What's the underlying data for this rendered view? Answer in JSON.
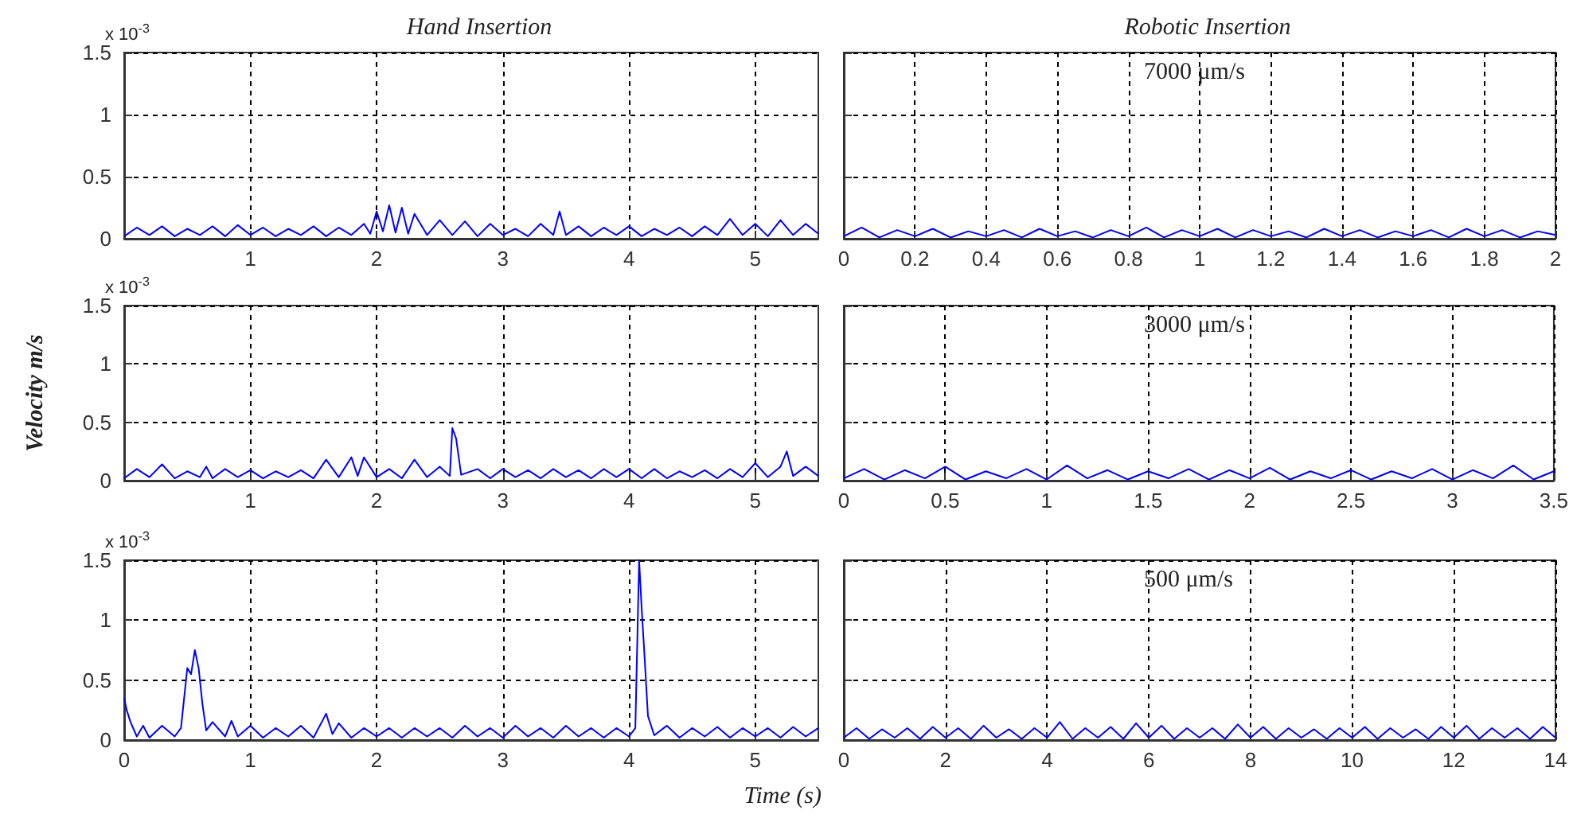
{
  "chart_data": [
    {
      "type": "line",
      "title": "Hand Insertion",
      "annotations": [
        "x 10$^{-3}$"
      ],
      "color": "#0000ff",
      "grid": true,
      "xlim": [
        0,
        5.5
      ],
      "xticks": [
        1,
        2,
        3,
        4,
        5
      ],
      "ylim": [
        0,
        1.5
      ],
      "yticks": [
        0,
        0.5,
        1,
        1.5
      ],
      "x": [
        0,
        0.1,
        0.2,
        0.3,
        0.4,
        0.5,
        0.6,
        0.7,
        0.8,
        0.9,
        1,
        1.1,
        1.2,
        1.3,
        1.4,
        1.5,
        1.6,
        1.7,
        1.8,
        1.9,
        1.95,
        2,
        2.05,
        2.1,
        2.15,
        2.2,
        2.25,
        2.3,
        2.4,
        2.5,
        2.6,
        2.7,
        2.8,
        2.9,
        3,
        3.1,
        3.2,
        3.3,
        3.4,
        3.45,
        3.5,
        3.6,
        3.7,
        3.8,
        3.9,
        4,
        4.1,
        4.2,
        4.3,
        4.4,
        4.5,
        4.6,
        4.7,
        4.8,
        4.9,
        5,
        5.1,
        5.2,
        5.3,
        5.4,
        5.5
      ],
      "values": [
        0.02,
        0.09,
        0.03,
        0.1,
        0.02,
        0.08,
        0.03,
        0.1,
        0.02,
        0.11,
        0.03,
        0.09,
        0.02,
        0.08,
        0.03,
        0.1,
        0.02,
        0.09,
        0.03,
        0.12,
        0.04,
        0.22,
        0.06,
        0.27,
        0.05,
        0.25,
        0.04,
        0.2,
        0.03,
        0.15,
        0.03,
        0.14,
        0.02,
        0.12,
        0.03,
        0.08,
        0.02,
        0.12,
        0.03,
        0.22,
        0.03,
        0.1,
        0.02,
        0.09,
        0.03,
        0.1,
        0.02,
        0.08,
        0.03,
        0.09,
        0.02,
        0.1,
        0.03,
        0.16,
        0.03,
        0.12,
        0.02,
        0.15,
        0.03,
        0.12,
        0.04
      ]
    },
    {
      "type": "line",
      "title": "Robotic Insertion",
      "annotations": [
        "7000 μm/s"
      ],
      "color": "#0000ff",
      "grid": true,
      "tick_labels": "x",
      "xlim": [
        0,
        2
      ],
      "xticks": [
        0,
        0.2,
        0.4,
        0.6,
        0.8,
        1,
        1.2,
        1.4,
        1.6,
        1.8,
        2
      ],
      "ylim": [
        0,
        1.5
      ],
      "yticks": [
        0,
        0.5,
        1,
        1.5
      ],
      "x": [
        0,
        0.05,
        0.1,
        0.15,
        0.2,
        0.25,
        0.3,
        0.35,
        0.4,
        0.45,
        0.5,
        0.55,
        0.6,
        0.65,
        0.7,
        0.75,
        0.8,
        0.85,
        0.9,
        0.95,
        1,
        1.05,
        1.1,
        1.15,
        1.2,
        1.25,
        1.3,
        1.35,
        1.4,
        1.45,
        1.5,
        1.55,
        1.6,
        1.65,
        1.7,
        1.75,
        1.8,
        1.85,
        1.9,
        1.95,
        2
      ],
      "values": [
        0.02,
        0.09,
        0.01,
        0.07,
        0.02,
        0.08,
        0.01,
        0.06,
        0.02,
        0.07,
        0.01,
        0.08,
        0.02,
        0.06,
        0.01,
        0.07,
        0.02,
        0.09,
        0.01,
        0.07,
        0.02,
        0.08,
        0.01,
        0.07,
        0.02,
        0.06,
        0.01,
        0.08,
        0.02,
        0.07,
        0.01,
        0.06,
        0.02,
        0.07,
        0.01,
        0.08,
        0.02,
        0.07,
        0.01,
        0.06,
        0.03
      ]
    },
    {
      "type": "line",
      "ylabel": "Velocity m/s",
      "annotations": [
        "x 10$^{-3}$"
      ],
      "color": "#0000ff",
      "grid": true,
      "xlim": [
        0,
        5.5
      ],
      "xticks": [
        1,
        2,
        3,
        4,
        5
      ],
      "ylim": [
        0,
        1.5
      ],
      "yticks": [
        0,
        0.5,
        1,
        1.5
      ],
      "x": [
        0,
        0.1,
        0.2,
        0.3,
        0.4,
        0.5,
        0.6,
        0.65,
        0.7,
        0.8,
        0.9,
        1,
        1.1,
        1.2,
        1.3,
        1.4,
        1.5,
        1.6,
        1.7,
        1.8,
        1.85,
        1.9,
        2,
        2.1,
        2.2,
        2.3,
        2.4,
        2.5,
        2.58,
        2.6,
        2.63,
        2.67,
        2.8,
        2.9,
        3,
        3.1,
        3.2,
        3.3,
        3.4,
        3.5,
        3.6,
        3.7,
        3.8,
        3.9,
        4,
        4.1,
        4.2,
        4.3,
        4.4,
        4.5,
        4.6,
        4.7,
        4.8,
        4.9,
        5,
        5.1,
        5.2,
        5.25,
        5.3,
        5.4,
        5.5
      ],
      "values": [
        0.02,
        0.1,
        0.03,
        0.14,
        0.02,
        0.08,
        0.03,
        0.12,
        0.02,
        0.1,
        0.03,
        0.09,
        0.02,
        0.08,
        0.03,
        0.09,
        0.02,
        0.18,
        0.03,
        0.2,
        0.04,
        0.2,
        0.03,
        0.1,
        0.02,
        0.18,
        0.03,
        0.12,
        0.04,
        0.45,
        0.36,
        0.05,
        0.1,
        0.02,
        0.1,
        0.03,
        0.09,
        0.02,
        0.1,
        0.03,
        0.09,
        0.02,
        0.1,
        0.03,
        0.1,
        0.02,
        0.1,
        0.02,
        0.08,
        0.03,
        0.09,
        0.02,
        0.1,
        0.03,
        0.15,
        0.03,
        0.12,
        0.25,
        0.04,
        0.12,
        0.04
      ]
    },
    {
      "type": "line",
      "annotations": [
        "3000 μm/s"
      ],
      "color": "#0000ff",
      "grid": true,
      "tick_labels": "x",
      "xlim": [
        0,
        3.5
      ],
      "xticks": [
        0,
        0.5,
        1,
        1.5,
        2,
        2.5,
        3,
        3.5
      ],
      "ylim": [
        0,
        1.5
      ],
      "yticks": [
        0,
        0.5,
        1,
        1.5
      ],
      "x": [
        0,
        0.1,
        0.2,
        0.3,
        0.4,
        0.5,
        0.6,
        0.7,
        0.8,
        0.9,
        1,
        1.1,
        1.2,
        1.3,
        1.4,
        1.5,
        1.6,
        1.7,
        1.8,
        1.9,
        2,
        2.1,
        2.2,
        2.3,
        2.4,
        2.5,
        2.6,
        2.7,
        2.8,
        2.9,
        3,
        3.1,
        3.2,
        3.3,
        3.4,
        3.5
      ],
      "values": [
        0.02,
        0.1,
        0.01,
        0.09,
        0.02,
        0.12,
        0.01,
        0.08,
        0.02,
        0.1,
        0.01,
        0.13,
        0.02,
        0.09,
        0.01,
        0.08,
        0.02,
        0.1,
        0.01,
        0.09,
        0.02,
        0.11,
        0.01,
        0.08,
        0.02,
        0.09,
        0.01,
        0.08,
        0.02,
        0.1,
        0.01,
        0.09,
        0.02,
        0.13,
        0.01,
        0.08
      ]
    },
    {
      "type": "line",
      "xlabel": "Time (s)",
      "annotations": [
        "x 10$^{-3}$"
      ],
      "color": "#0000ff",
      "grid": true,
      "xlim": [
        0,
        5.5
      ],
      "xticks": [
        0,
        1,
        2,
        3,
        4,
        5
      ],
      "ylim": [
        0,
        1.5
      ],
      "yticks": [
        0,
        0.5,
        1,
        1.5
      ],
      "x": [
        0,
        0.02,
        0.05,
        0.1,
        0.15,
        0.2,
        0.3,
        0.4,
        0.45,
        0.5,
        0.53,
        0.56,
        0.59,
        0.62,
        0.65,
        0.7,
        0.8,
        0.85,
        0.9,
        1,
        1.1,
        1.2,
        1.3,
        1.4,
        1.5,
        1.6,
        1.65,
        1.7,
        1.8,
        1.9,
        2,
        2.1,
        2.2,
        2.3,
        2.4,
        2.5,
        2.6,
        2.7,
        2.8,
        2.9,
        3,
        3.1,
        3.2,
        3.3,
        3.4,
        3.5,
        3.6,
        3.7,
        3.8,
        3.9,
        4,
        4.05,
        4.08,
        4.1,
        4.12,
        4.15,
        4.2,
        4.3,
        4.4,
        4.5,
        4.6,
        4.7,
        4.8,
        4.9,
        5,
        5.1,
        5.2,
        5.3,
        5.4,
        5.5
      ],
      "values": [
        0.35,
        0.25,
        0.15,
        0.03,
        0.12,
        0.02,
        0.12,
        0.03,
        0.1,
        0.6,
        0.55,
        0.75,
        0.6,
        0.3,
        0.08,
        0.15,
        0.03,
        0.16,
        0.03,
        0.12,
        0.02,
        0.1,
        0.03,
        0.12,
        0.02,
        0.22,
        0.05,
        0.14,
        0.02,
        0.1,
        0.03,
        0.1,
        0.02,
        0.1,
        0.03,
        0.1,
        0.02,
        0.12,
        0.03,
        0.1,
        0.02,
        0.12,
        0.03,
        0.1,
        0.02,
        0.12,
        0.03,
        0.1,
        0.02,
        0.1,
        0.03,
        0.1,
        1.5,
        1.1,
        0.75,
        0.2,
        0.04,
        0.12,
        0.02,
        0.1,
        0.03,
        0.11,
        0.02,
        0.1,
        0.03,
        0.1,
        0.02,
        0.11,
        0.03,
        0.1
      ]
    },
    {
      "type": "line",
      "annotations": [
        "500 μm/s"
      ],
      "color": "#0000ff",
      "grid": true,
      "tick_labels": "x",
      "xlim": [
        0,
        14
      ],
      "xticks": [
        0,
        2,
        4,
        6,
        8,
        10,
        12,
        14
      ],
      "ylim": [
        0,
        1.5
      ],
      "yticks": [
        0,
        0.5,
        1,
        1.5
      ],
      "x": [
        0,
        0.25,
        0.5,
        0.75,
        1,
        1.25,
        1.5,
        1.75,
        2,
        2.25,
        2.5,
        2.75,
        3,
        3.25,
        3.5,
        3.75,
        4,
        4.25,
        4.5,
        4.75,
        5,
        5.25,
        5.5,
        5.75,
        6,
        6.25,
        6.5,
        6.75,
        7,
        7.25,
        7.5,
        7.75,
        8,
        8.25,
        8.5,
        8.75,
        9,
        9.25,
        9.5,
        9.75,
        10,
        10.25,
        10.5,
        10.75,
        11,
        11.25,
        11.5,
        11.75,
        12,
        12.25,
        12.5,
        12.75,
        13,
        13.25,
        13.5,
        13.75,
        14
      ],
      "values": [
        0.02,
        0.1,
        0.01,
        0.09,
        0.02,
        0.1,
        0.01,
        0.11,
        0.02,
        0.1,
        0.01,
        0.12,
        0.02,
        0.09,
        0.01,
        0.1,
        0.02,
        0.15,
        0.01,
        0.1,
        0.02,
        0.11,
        0.01,
        0.14,
        0.02,
        0.12,
        0.01,
        0.1,
        0.02,
        0.1,
        0.01,
        0.13,
        0.02,
        0.11,
        0.01,
        0.1,
        0.02,
        0.09,
        0.01,
        0.1,
        0.02,
        0.11,
        0.01,
        0.1,
        0.02,
        0.09,
        0.01,
        0.11,
        0.02,
        0.12,
        0.01,
        0.1,
        0.02,
        0.1,
        0.01,
        0.11,
        0.02
      ]
    }
  ]
}
